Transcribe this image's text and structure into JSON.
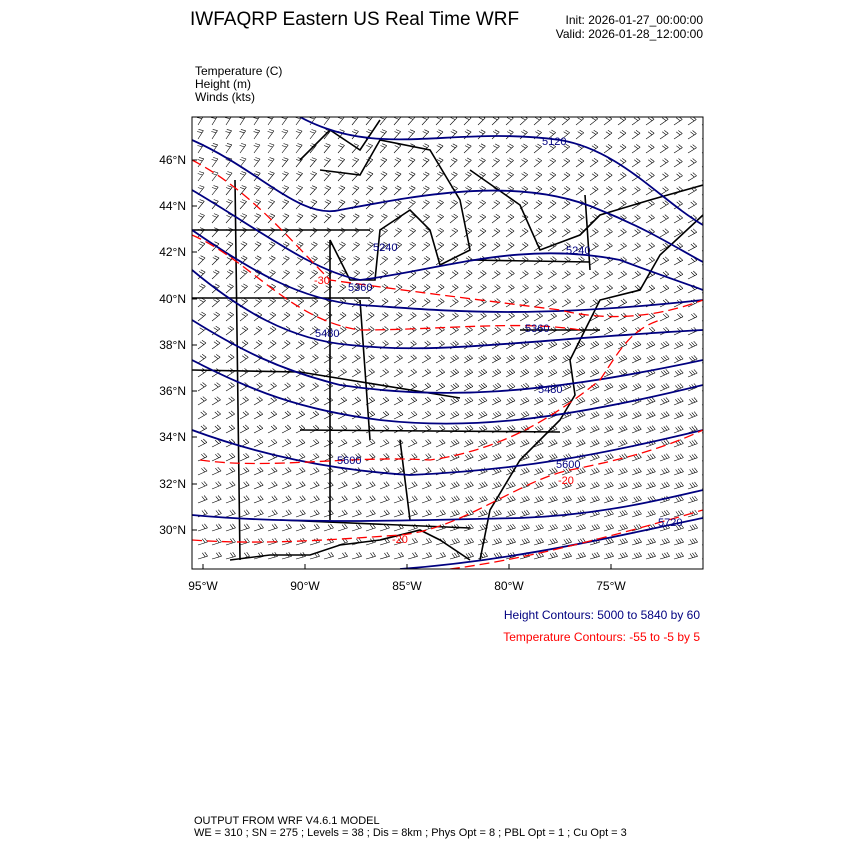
{
  "header": {
    "title": "IWFAQRP Eastern US Real Time WRF",
    "init": "Init: 2026-01-27_00:00:00",
    "valid": "Valid: 2026-01-28_12:00:00"
  },
  "fields": [
    {
      "label": "Temperature   (C)"
    },
    {
      "label": "Height   (m)"
    },
    {
      "label": "Winds   (kts)"
    }
  ],
  "axes": {
    "lat_labels": [
      "46°N",
      "44°N",
      "42°N",
      "40°N",
      "38°N",
      "36°N",
      "34°N",
      "32°N",
      "30°N"
    ],
    "lon_labels": [
      "95°W",
      "90°W",
      "85°W",
      "80°W",
      "75°W"
    ]
  },
  "contour_labels": {
    "height": [
      "5120",
      "5240",
      "5240",
      "5360",
      "5480",
      "5360",
      "5480",
      "5600",
      "5600",
      "5720"
    ],
    "temperature": [
      "-30",
      "-20",
      "-20"
    ]
  },
  "legend": {
    "height_contours": "Height Contours: 5000 to 5840 by 60",
    "temperature_contours": "Temperature Contours: -55 to -5 by 5"
  },
  "colors": {
    "height": "#000080",
    "temperature": "#ff0000",
    "borders": "#000000"
  },
  "footer": {
    "line1": "OUTPUT FROM WRF V4.6.1 MODEL",
    "line2": "WE = 310 ; SN = 275 ; Levels = 38 ; Dis = 8km ; Phys Opt = 8 ; PBL Opt = 1 ; Cu Opt = 3"
  }
}
